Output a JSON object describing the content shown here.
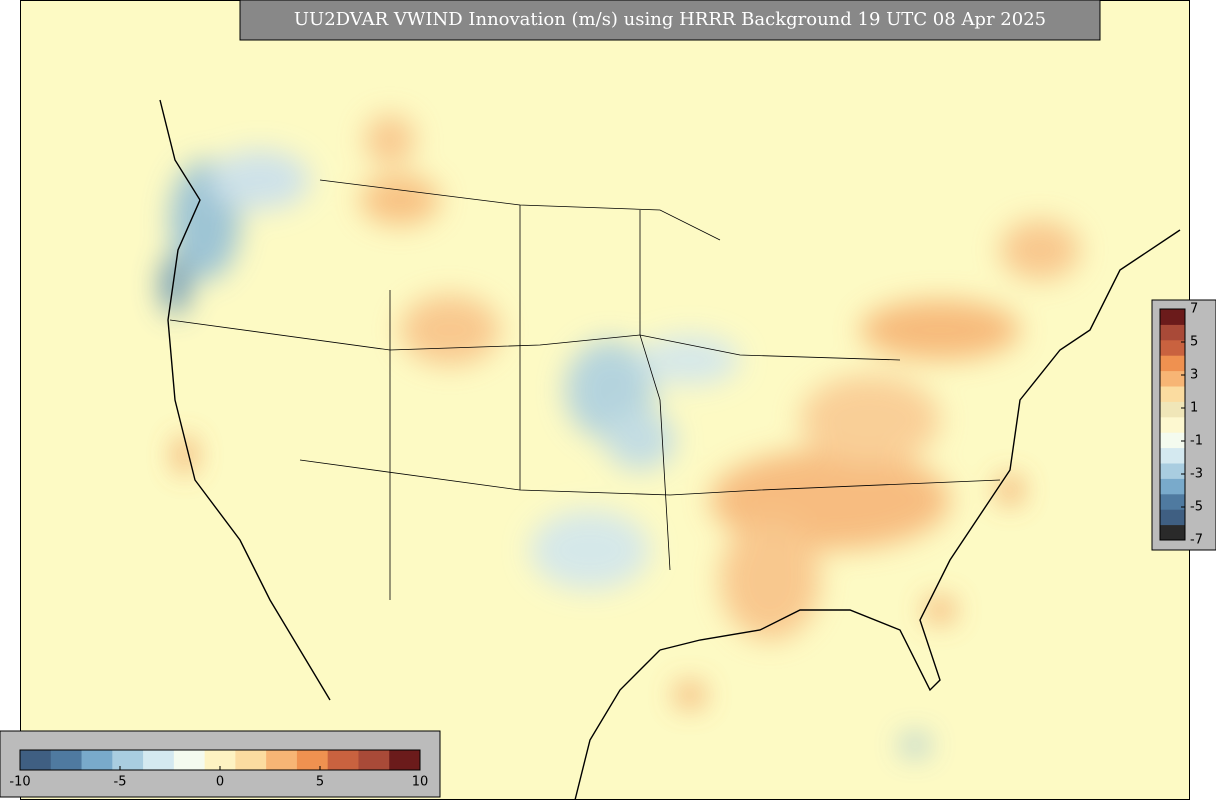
{
  "title": "UU2DVAR VWIND Innovation (m/s) using HRRR Background 19 UTC 08 Apr 2025",
  "colorbar_bottom": {
    "range": [
      -10,
      10
    ],
    "ticks": [
      -10,
      -5,
      0,
      5,
      10
    ],
    "colors": [
      "#3f5f82",
      "#4f7aa0",
      "#79aacb",
      "#a9cde0",
      "#d4e9f0",
      "#f4fbef",
      "#fdf3c2",
      "#fbdca0",
      "#f7b575",
      "#ef9150",
      "#c9623f",
      "#a94a38",
      "#6b1b1b"
    ]
  },
  "colorbar_right": {
    "range": [
      -7,
      7
    ],
    "ticks": [
      -7,
      -5,
      -3,
      -1,
      1,
      3,
      5,
      7
    ],
    "colors": [
      "#2a2a2a",
      "#3f5f82",
      "#4f7aa0",
      "#79aacb",
      "#a9cde0",
      "#d4e9f0",
      "#f4fbef",
      "#fdf8d0",
      "#f0e6b8",
      "#fbdca0",
      "#f7b575",
      "#ef9150",
      "#c9623f",
      "#a94a38",
      "#6b1b1b"
    ]
  }
}
